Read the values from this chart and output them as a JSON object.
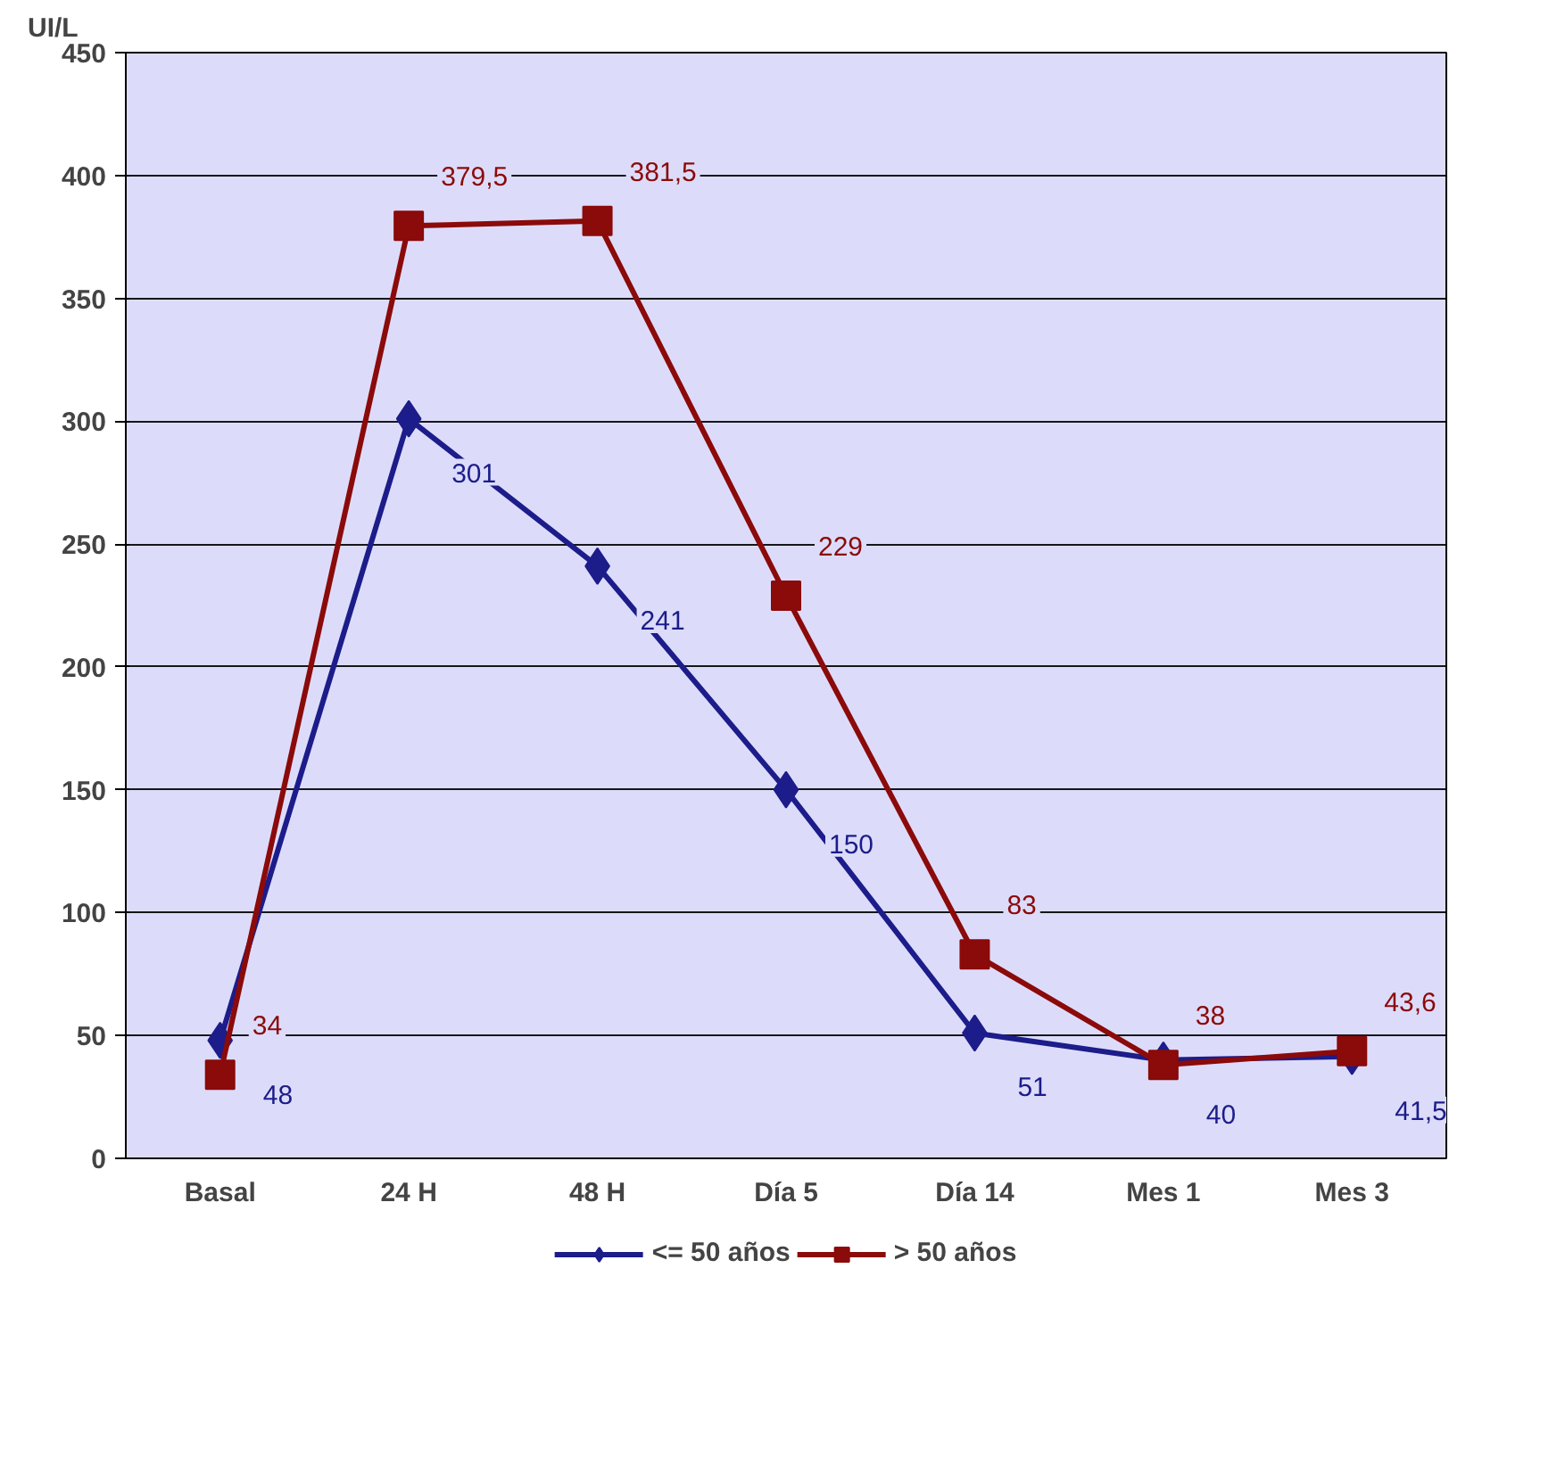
{
  "chart_data": {
    "type": "line",
    "ylabel": "UI/L",
    "categories": [
      "Basal",
      "24 H",
      "48 H",
      "Día 5",
      "Día 14",
      "Mes 1",
      "Mes 3"
    ],
    "series": [
      {
        "name": "<= 50 años",
        "color": "#1c1c8a",
        "marker": "diamond",
        "values": [
          48,
          301,
          241,
          150,
          51,
          40,
          41.5
        ],
        "value_labels": [
          "48",
          "301",
          "241",
          "150",
          "51",
          "40",
          "41,5"
        ]
      },
      {
        "name": "> 50 años",
        "color": "#8b0a0a",
        "marker": "square",
        "values": [
          34,
          379.5,
          381.5,
          229,
          83,
          38,
          43.6
        ],
        "value_labels": [
          "34",
          "379,5",
          "381,5",
          "229",
          "83",
          "38",
          "43,6"
        ]
      }
    ],
    "ylim": [
      0,
      450
    ],
    "yticks": [
      0,
      50,
      100,
      150,
      200,
      250,
      300,
      350,
      400,
      450
    ],
    "grid": "y",
    "legend": "bottom",
    "line_style": "solid"
  }
}
